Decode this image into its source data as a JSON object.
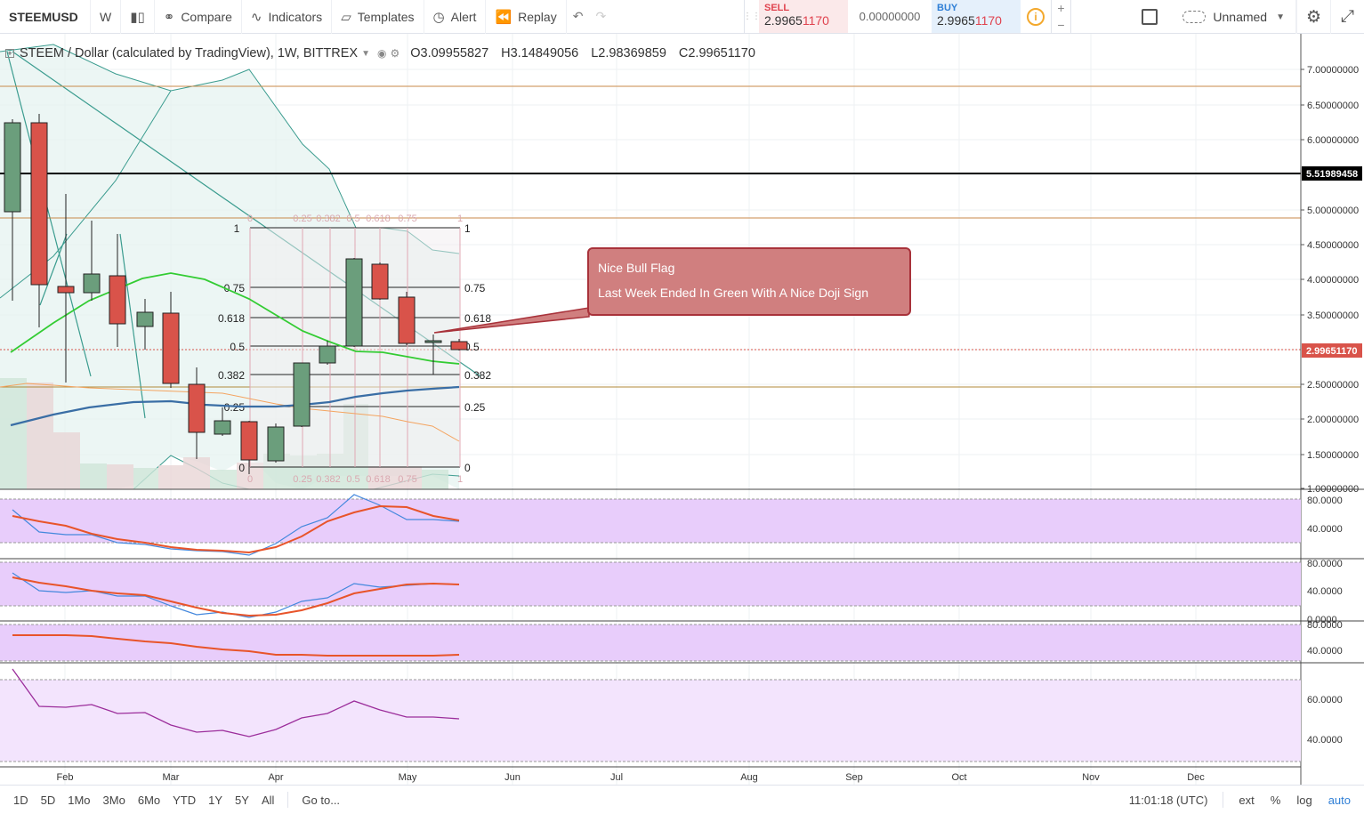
{
  "toolbar": {
    "symbol": "STEEMUSD",
    "interval": "W",
    "compare": "Compare",
    "indicators": "Indicators",
    "templates": "Templates",
    "alert": "Alert",
    "replay": "Replay"
  },
  "trade": {
    "sell_label": "SELL",
    "sell_price_main": "2.9965",
    "sell_price_hl": "1170",
    "spread": "0.00000000",
    "buy_label": "BUY",
    "buy_price_main": "2.9965",
    "buy_price_hl": "1170"
  },
  "layout_menu": {
    "name": "Unnamed"
  },
  "legend": {
    "title": "STEEM / Dollar (calculated by TradingView), 1W, BITTREX",
    "open": "O3.09955827",
    "high": "H3.14849056",
    "low": "L2.98369859",
    "close": "C2.99651170"
  },
  "annotation": {
    "line1": "Nice Bull Flag",
    "line2": "Last Week Ended In Green With A Nice Doji Sign"
  },
  "price_axis": {
    "labels": [
      "7.00000000",
      "6.50000000",
      "6.00000000",
      "5.00000000",
      "4.50000000",
      "4.00000000",
      "3.50000000",
      "2.50000000",
      "2.00000000",
      "1.50000000",
      "1.00000000"
    ],
    "highlight_black": "5.51989458",
    "highlight_red": "2.99651170"
  },
  "fib": {
    "levels": [
      "1",
      "0.75",
      "0.618",
      "0.5",
      "0.382",
      "0.25",
      "0"
    ],
    "top_labels": [
      "0",
      "0.25",
      "0.382",
      "0.5",
      "0.618",
      "0.75",
      "1"
    ]
  },
  "indicator_axes": {
    "pane1": [
      "80.0000",
      "40.0000"
    ],
    "pane2": [
      "80.0000",
      "40.0000",
      "0.0000"
    ],
    "pane3": [
      "80.0000",
      "40.0000"
    ],
    "pane4": [
      "60.0000",
      "40.0000"
    ]
  },
  "time_axis": [
    "Feb",
    "Mar",
    "Apr",
    "May",
    "Jun",
    "Jul",
    "Aug",
    "Sep",
    "Oct",
    "Nov",
    "Dec"
  ],
  "colors": {
    "up": "#6b9e7c",
    "down": "#d9534a",
    "ma_green": "#33cc33",
    "ma_blue": "#3a6ea5",
    "indicator_bg": "#e8cdfb"
  },
  "bottombar": {
    "ranges": [
      "1D",
      "5D",
      "1Mo",
      "3Mo",
      "6Mo",
      "YTD",
      "1Y",
      "5Y",
      "All"
    ],
    "goto": "Go to...",
    "time": "11:01:18 (UTC)",
    "ext": "ext",
    "pct": "%",
    "log": "log",
    "auto": "auto"
  }
}
